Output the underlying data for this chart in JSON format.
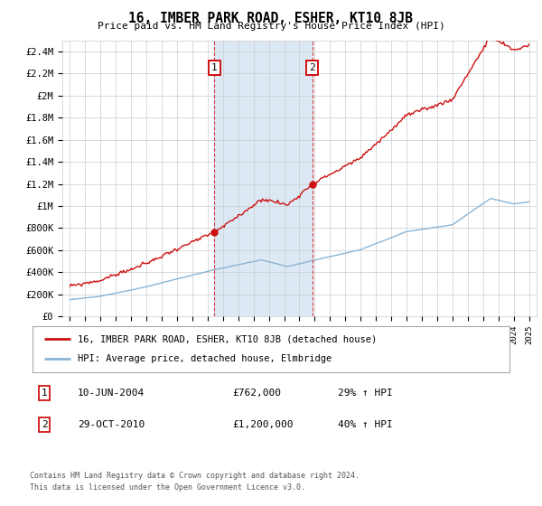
{
  "title": "16, IMBER PARK ROAD, ESHER, KT10 8JB",
  "subtitle": "Price paid vs. HM Land Registry's House Price Index (HPI)",
  "ylim": [
    0,
    2500000
  ],
  "yticks": [
    0,
    200000,
    400000,
    600000,
    800000,
    1000000,
    1200000,
    1400000,
    1600000,
    1800000,
    2000000,
    2200000,
    2400000
  ],
  "ytick_labels": [
    "£0",
    "£200K",
    "£400K",
    "£600K",
    "£800K",
    "£1M",
    "£1.2M",
    "£1.4M",
    "£1.6M",
    "£1.8M",
    "£2M",
    "£2.2M",
    "£2.4M"
  ],
  "hpi_color": "#8ab4d4",
  "price_color": "#cc1111",
  "shading_color": "#dce9f5",
  "plot_bg": "#ffffff",
  "grid_color": "#cccccc",
  "sale1_date": 2004.44,
  "sale1_price": 762000,
  "sale2_date": 2010.83,
  "sale2_price": 1200000,
  "legend_label_price": "16, IMBER PARK ROAD, ESHER, KT10 8JB (detached house)",
  "legend_label_hpi": "HPI: Average price, detached house, Elmbridge",
  "footer1": "Contains HM Land Registry data © Crown copyright and database right 2024.",
  "footer2": "This data is licensed under the Open Government Licence v3.0.",
  "table_row1": [
    "1",
    "10-JUN-2004",
    "£762,000",
    "29% ↑ HPI"
  ],
  "table_row2": [
    "2",
    "29-OCT-2010",
    "£1,200,000",
    "40% ↑ HPI"
  ]
}
